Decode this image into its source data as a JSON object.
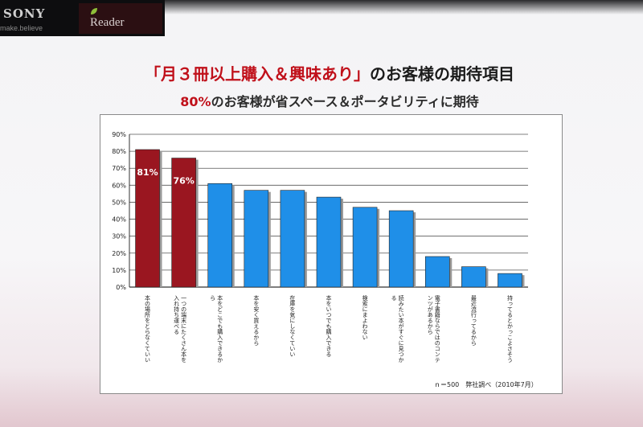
{
  "header": {
    "brand": "SONY",
    "tagline": "make.believe",
    "product": "Reader"
  },
  "slide": {
    "title_highlight": "「月３冊以上購入＆興味あり」",
    "title_rest": "のお客様の期待項目",
    "subtitle_highlight": "80%",
    "subtitle_rest": "のお客様が省スペース＆ポータビリティに期待"
  },
  "colors": {
    "highlight_bar": "#9a1620",
    "normal_bar": "#1f8fe8",
    "accent_text": "#c0101a"
  },
  "chart_data": {
    "type": "bar",
    "title": "",
    "xlabel": "",
    "ylabel": "",
    "ylim": [
      0,
      90
    ],
    "yticks": [
      "0%",
      "10%",
      "20%",
      "30%",
      "40%",
      "50%",
      "60%",
      "70%",
      "80%",
      "90%"
    ],
    "grid": true,
    "categories": [
      "本の場所をとらなくていい",
      "一つの端末にたくさん本を入れ持ち運べる",
      "本をどこでも購入できるから",
      "本を安く買えるから",
      "在庫を気にしなくていい",
      "本をいつでも購入できる",
      "検索にまよわない",
      "読みたい本がすぐに見つかる",
      "電子書籍ならではのコンテンツがあるから",
      "最近流行ってるから",
      "持ってるとかっこよさそう"
    ],
    "values": [
      81,
      76,
      61,
      57,
      57,
      53,
      47,
      45,
      18,
      12,
      8
    ],
    "highlighted": [
      true,
      true,
      false,
      false,
      false,
      false,
      false,
      false,
      false,
      false,
      false
    ],
    "data_labels": [
      "81%",
      "76%",
      "",
      "",
      "",
      "",
      "",
      "",
      "",
      "",
      ""
    ],
    "footnote": "ｎ＝500　弊社調べ（2010年7月）"
  }
}
